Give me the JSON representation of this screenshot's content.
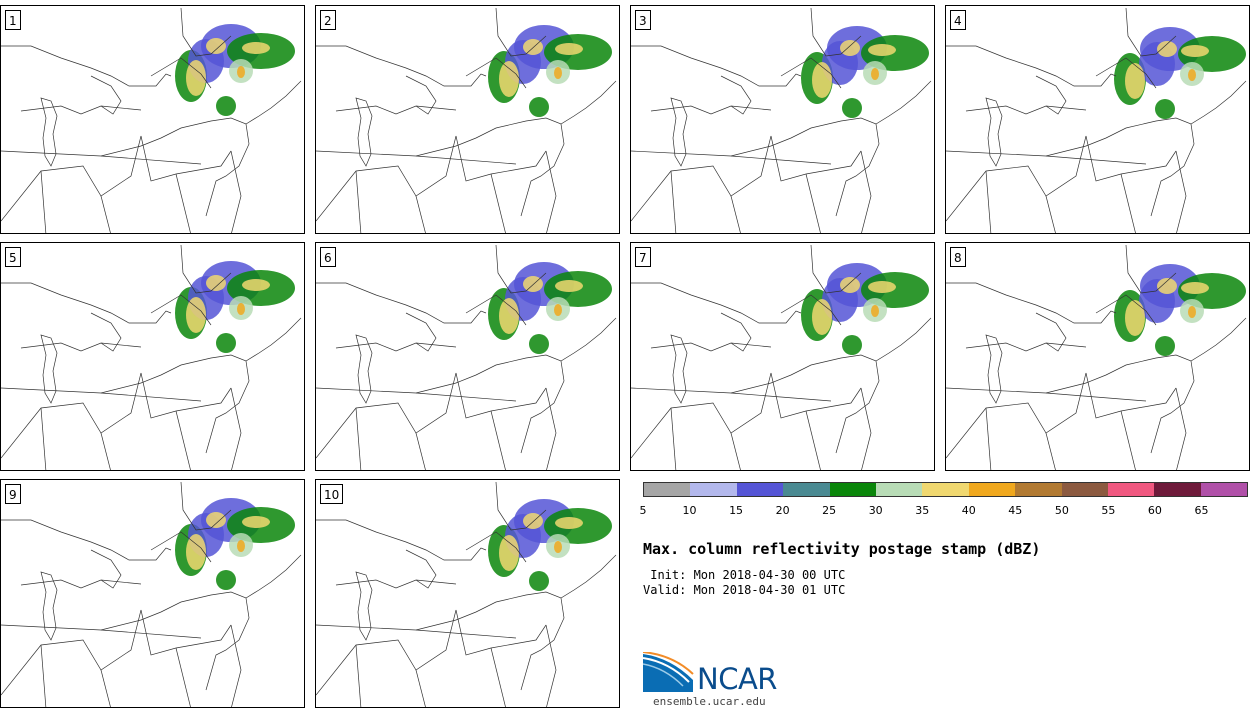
{
  "panels": [
    {
      "label": "1"
    },
    {
      "label": "2"
    },
    {
      "label": "3"
    },
    {
      "label": "4"
    },
    {
      "label": "5"
    },
    {
      "label": "6"
    },
    {
      "label": "7"
    },
    {
      "label": "8"
    },
    {
      "label": "9"
    },
    {
      "label": "10"
    }
  ],
  "colorbar": {
    "colors": [
      "#a6a6a6",
      "#b3b8ec",
      "#5555d6",
      "#4a8a92",
      "#0a860a",
      "#b8dcb6",
      "#f0d870",
      "#f0a81e",
      "#b27a32",
      "#8c5a40",
      "#f05880",
      "#6e1a3a",
      "#b050a8"
    ],
    "ticks": [
      "5",
      "10",
      "15",
      "20",
      "25",
      "30",
      "35",
      "40",
      "45",
      "50",
      "55",
      "60",
      "65"
    ]
  },
  "title": "Max. column reflectivity postage stamp (dBZ)",
  "init": " Init: Mon 2018-04-30 00 UTC",
  "valid": "Valid: Mon 2018-04-30 01 UTC",
  "logo": {
    "text": "NCAR",
    "site": "ensemble.ucar.edu"
  }
}
